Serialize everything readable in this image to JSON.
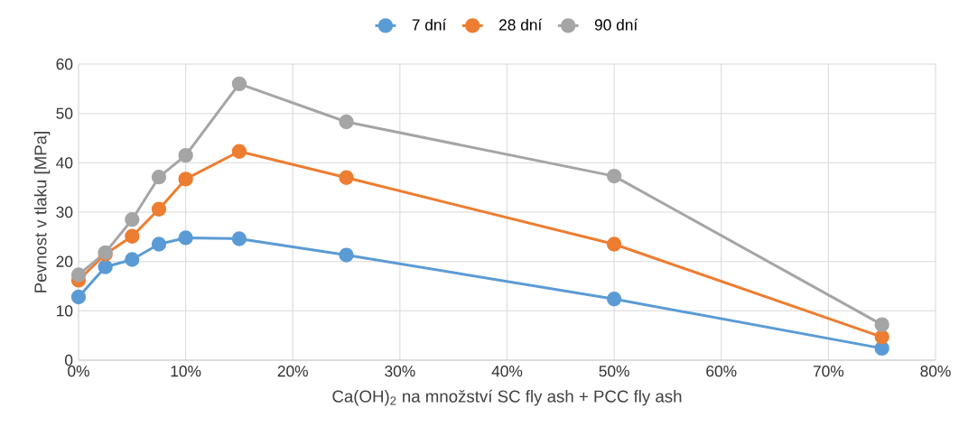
{
  "chart_data": {
    "type": "line",
    "xlabel": "Ca(OH)$_{2}$ na množství SC fly ash + PCC fly ash",
    "ylabel": "Pevnost v tlaku [MPa]",
    "x": [
      0,
      2.5,
      5,
      7.5,
      10,
      15,
      25,
      50,
      75
    ],
    "series": [
      {
        "name": "7 dní",
        "color": "#5b9bd5",
        "values": [
          12.8,
          18.9,
          20.4,
          23.5,
          24.8,
          24.6,
          21.3,
          12.4,
          2.4
        ]
      },
      {
        "name": "28 dní",
        "color": "#ed7d31",
        "values": [
          16.2,
          21.5,
          25.1,
          30.6,
          36.7,
          42.3,
          37.0,
          23.5,
          4.7
        ]
      },
      {
        "name": "90 dní",
        "color": "#a5a5a5",
        "values": [
          17.3,
          21.8,
          28.5,
          37.1,
          41.5,
          56.0,
          48.3,
          37.3,
          7.2
        ]
      }
    ],
    "xlim": [
      0,
      80
    ],
    "ylim": [
      0,
      60
    ],
    "xticks": [
      {
        "value": 0,
        "label": "0%"
      },
      {
        "value": 10,
        "label": "10%"
      },
      {
        "value": 20,
        "label": "20%"
      },
      {
        "value": 30,
        "label": "30%"
      },
      {
        "value": 40,
        "label": "40%"
      },
      {
        "value": 50,
        "label": "50%"
      },
      {
        "value": 60,
        "label": "60%"
      },
      {
        "value": 70,
        "label": "70%"
      },
      {
        "value": 80,
        "label": "80%"
      }
    ],
    "yticks": [
      0,
      10,
      20,
      30,
      40,
      50,
      60
    ],
    "grid": true,
    "legend": "top",
    "marker": "circle",
    "line_style": "solid"
  }
}
